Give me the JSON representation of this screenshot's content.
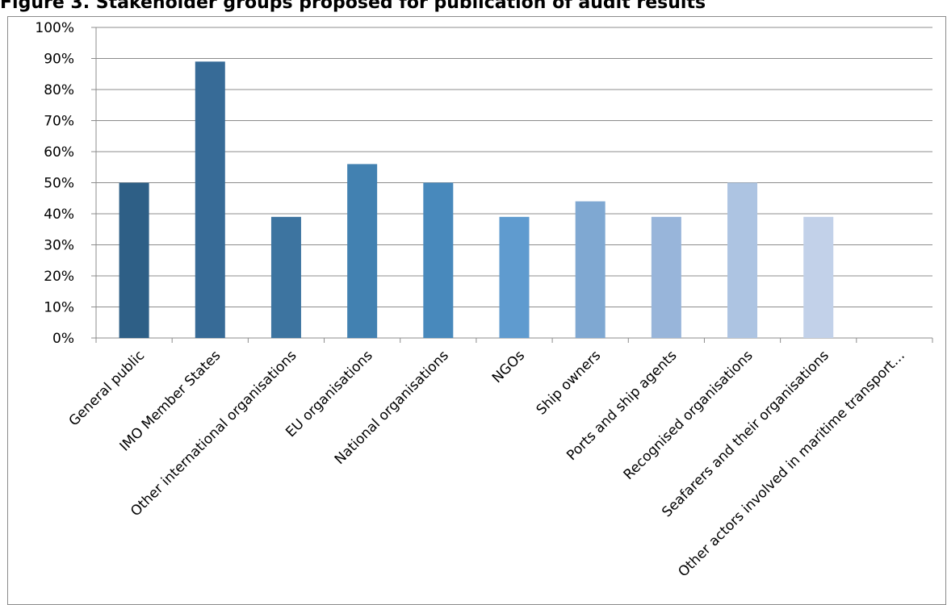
{
  "figure": {
    "title": "Figure 3. Stakeholder groups proposed for publication of audit results"
  },
  "chart_data": {
    "type": "bar",
    "title": "",
    "xlabel": "",
    "ylabel": "",
    "ylim": [
      0,
      100
    ],
    "y_ticks": [
      "0%",
      "10%",
      "20%",
      "30%",
      "40%",
      "50%",
      "60%",
      "70%",
      "80%",
      "90%",
      "100%"
    ],
    "grid": true,
    "legend": "none",
    "categories": [
      "General public",
      "IMO Member States",
      "Other international organisations",
      "EU organisations",
      "National organisations",
      "NGOs",
      "Ship owners",
      "Ports and ship agents",
      "Recognised organisations",
      "Seafarers and their organisations",
      "Other actors involved in maritime transport…"
    ],
    "values": [
      50,
      89,
      39,
      56,
      50,
      39,
      44,
      39,
      50,
      39,
      0
    ],
    "colors": [
      "#2e5f86",
      "#376b97",
      "#3d74a0",
      "#4281b1",
      "#4889bc",
      "#5f9bcf",
      "#7fa8d2",
      "#98b5da",
      "#adc4e2",
      "#c2d1e9",
      "#d5e0f0"
    ]
  }
}
